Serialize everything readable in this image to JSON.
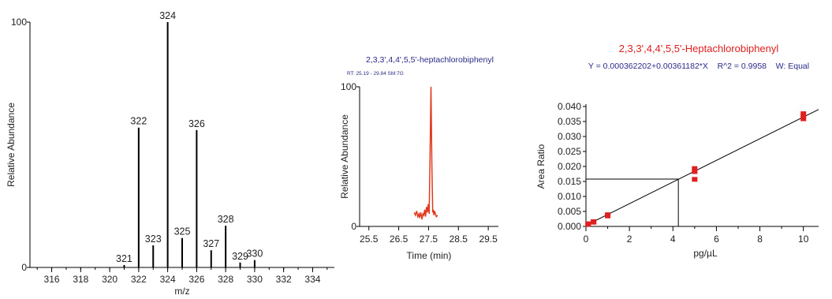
{
  "chart_data": [
    {
      "type": "bar",
      "subtype": "mass-spectrum",
      "title": "",
      "xlabel": "m/z",
      "ylabel": "Relative Abundance",
      "xlim": [
        314.5,
        335.5
      ],
      "ylim": [
        0,
        100
      ],
      "x_ticks": [
        316,
        318,
        320,
        322,
        324,
        326,
        328,
        330,
        332,
        334
      ],
      "y_ticks": [
        0,
        100
      ],
      "peaks": [
        {
          "mz": 321,
          "label": "321",
          "abundance": 1
        },
        {
          "mz": 322,
          "label": "322",
          "abundance": 57
        },
        {
          "mz": 323,
          "label": "323",
          "abundance": 9
        },
        {
          "mz": 324,
          "label": "324",
          "abundance": 100
        },
        {
          "mz": 325,
          "label": "325",
          "abundance": 12
        },
        {
          "mz": 326,
          "label": "326",
          "abundance": 56
        },
        {
          "mz": 327,
          "label": "327",
          "abundance": 7
        },
        {
          "mz": 328,
          "label": "328",
          "abundance": 17
        },
        {
          "mz": 329,
          "label": "329",
          "abundance": 2
        },
        {
          "mz": 330,
          "label": "330",
          "abundance": 3
        }
      ],
      "bar_color": "#000000"
    },
    {
      "type": "line",
      "subtype": "chromatogram",
      "title": "2,3,3',4,4',5,5'-heptachlorobiphenyl",
      "subtitle": "RT: 25.19 - 29.84  SM:7G",
      "xlabel": "Time (min)",
      "ylabel": "Relative Abundance",
      "xlim": [
        25.19,
        29.84
      ],
      "ylim": [
        0,
        100
      ],
      "x_ticks": [
        25.5,
        26.5,
        27.5,
        28.5,
        29.5
      ],
      "y_ticks": [
        0,
        100
      ],
      "line_color": "#e03a1e",
      "x": [
        27.02,
        27.06,
        27.1,
        27.14,
        27.18,
        27.2,
        27.24,
        27.28,
        27.31,
        27.34,
        27.37,
        27.4,
        27.43,
        27.46,
        27.49,
        27.52,
        27.55,
        27.58,
        27.61,
        27.64,
        27.66,
        27.68,
        27.7,
        27.73,
        27.76,
        27.8
      ],
      "y": [
        10,
        8,
        11,
        7,
        9,
        6,
        10,
        5,
        9,
        8,
        12,
        7,
        14,
        10,
        16,
        9,
        50,
        100,
        45,
        10,
        12,
        8,
        11,
        9,
        7,
        8
      ]
    },
    {
      "type": "scatter",
      "subtype": "calibration-curve",
      "title": "2,3,3',4,4',5,5'-Heptachlorobiphenyl",
      "subtitle": "Y = 0.000362202+0.00361182*X    R^2 = 0.9958    W: Equal",
      "xlabel": "pg/µL",
      "ylabel": "Area Ratio",
      "xlim": [
        0,
        10.7
      ],
      "ylim": [
        0,
        0.04
      ],
      "x_ticks": [
        0,
        2,
        4,
        6,
        8,
        10
      ],
      "y_ticks": [
        0.0,
        0.005,
        0.01,
        0.015,
        0.02,
        0.025,
        0.03,
        0.035,
        0.04
      ],
      "y_tick_labels": [
        "0.000",
        "0.005",
        "0.010",
        "0.015",
        "0.020",
        "0.025",
        "0.030",
        "0.035",
        "0.040"
      ],
      "fit": {
        "intercept": 0.000362202,
        "slope": 0.00361182,
        "x_range": [
          0,
          10.7
        ]
      },
      "points": [
        {
          "x": 0.1,
          "y": 0.0009
        },
        {
          "x": 0.1,
          "y": 0.0007
        },
        {
          "x": 0.35,
          "y": 0.0016
        },
        {
          "x": 0.35,
          "y": 0.0014
        },
        {
          "x": 1.0,
          "y": 0.0039
        },
        {
          "x": 1.0,
          "y": 0.0035
        },
        {
          "x": 5.0,
          "y": 0.0193
        },
        {
          "x": 5.0,
          "y": 0.0183
        },
        {
          "x": 5.0,
          "y": 0.0157
        },
        {
          "x": 10.0,
          "y": 0.0376
        },
        {
          "x": 10.0,
          "y": 0.0367
        },
        {
          "x": 10.0,
          "y": 0.0359
        }
      ],
      "reference": {
        "x": 4.25,
        "y": 0.0158
      },
      "title_color": "#e02020",
      "subtitle_color": "#2b2b8a",
      "point_color": "#e02020"
    }
  ]
}
